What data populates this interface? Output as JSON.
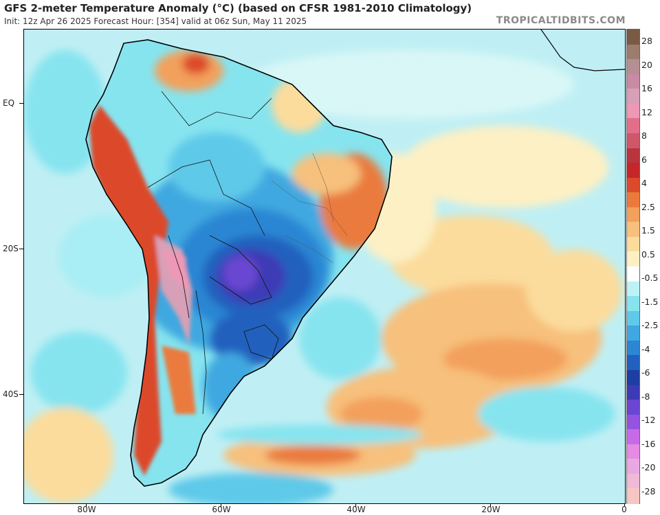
{
  "header": {
    "title": "GFS 2-meter Temperature Anomaly (°C) (based on CFSR 1981-2010 Climatology)",
    "subtitle": "Init: 12z Apr 26 2025   Forecast Hour: [354]   valid at 06z Sun, May 11 2025",
    "watermark": "TROPICALTIDBITS.COM"
  },
  "axes": {
    "lat_labels": [
      "EQ",
      "20S",
      "40S"
    ],
    "lon_labels": [
      "80W",
      "60W",
      "40W",
      "20W",
      "0"
    ]
  },
  "colorbar": {
    "labels": [
      "28",
      "20",
      "16",
      "12",
      "8",
      "6",
      "4",
      "2.5",
      "1.5",
      "0.5",
      "-0.5",
      "-1.5",
      "-2.5",
      "-4",
      "-6",
      "-8",
      "-12",
      "-16",
      "-20",
      "-28"
    ],
    "colors": [
      "#7b5a45",
      "#9c7c6c",
      "#b58f94",
      "#c98aa3",
      "#d7a0b7",
      "#ee98b6",
      "#e26f8a",
      "#d0576a",
      "#b8343f",
      "#c5262a",
      "#dc4a2c",
      "#ea7a3c",
      "#f3a05c",
      "#f7c07c",
      "#fbdc9c",
      "#fdf0c4",
      "#ffffff",
      "#bdf3f7",
      "#86e4ef",
      "#5fc9e9",
      "#3fa8e0",
      "#2b86d3",
      "#2160be",
      "#1f3ea1",
      "#3d3ab5",
      "#6a46d2",
      "#9453e0",
      "#c76ae8",
      "#e58be4",
      "#eaa8e2",
      "#f0b9d6",
      "#f6c6c2"
    ]
  }
}
